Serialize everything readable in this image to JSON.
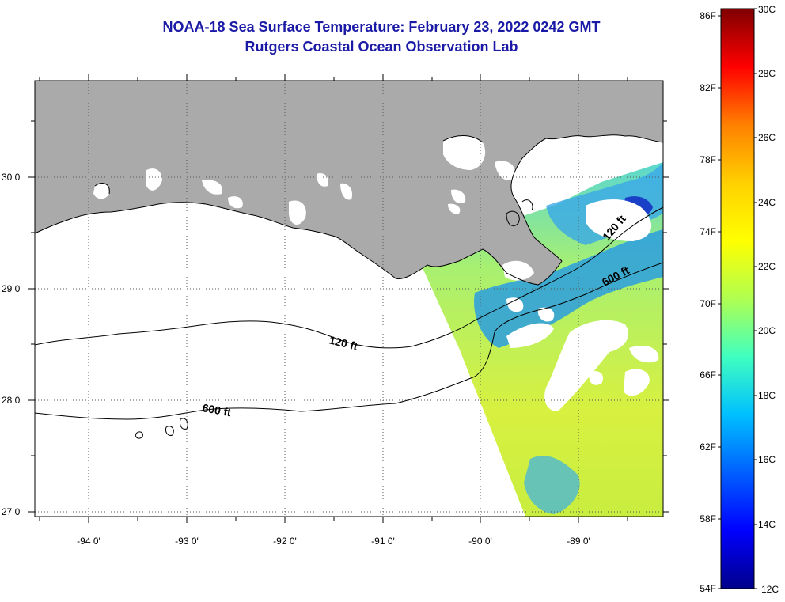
{
  "title": {
    "line1": "NOAA-18 Sea Surface Temperature:  February 23, 2022 0242 GMT",
    "line2": "Rutgers Coastal Ocean Observation Lab"
  },
  "map": {
    "lon_labels": [
      "-94 0'",
      "-93 0'",
      "-92 0'",
      "-91 0'",
      "-90 0'",
      "-89 0'"
    ],
    "lat_labels": [
      "30 0'",
      "29 0'",
      "28 0'",
      "27 0'"
    ],
    "contour_labels": [
      "120 ft",
      "600 ft",
      "120 ft",
      "600 ft"
    ],
    "colors": {
      "land": "#aaaaaa",
      "cloud": "#ffffff",
      "contour": "#000000"
    }
  },
  "colorbar": {
    "fahrenheit": [
      "86F",
      "82F",
      "78F",
      "74F",
      "70F",
      "66F",
      "62F",
      "58F",
      "54F"
    ],
    "celsius": [
      "30C",
      "28C",
      "26C",
      "24C",
      "22C",
      "20C",
      "18C",
      "16C",
      "14C",
      "12C"
    ],
    "gradient": [
      "#7f0000",
      "#ff0000",
      "#ff8000",
      "#ffd000",
      "#ffff00",
      "#b0ff50",
      "#40ffc0",
      "#00c0ff",
      "#0060ff",
      "#0000ff",
      "#00008a"
    ]
  }
}
